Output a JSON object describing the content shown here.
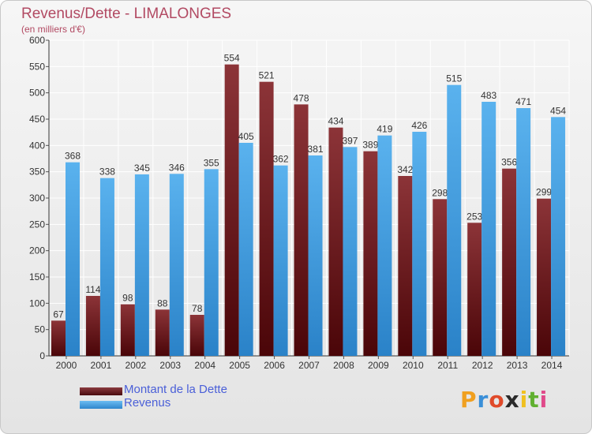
{
  "header": {
    "title": "Revenus/Dette - LIMALONGES",
    "subtitle": "(en milliers d'€)"
  },
  "chart_data": {
    "type": "bar",
    "categories": [
      "2000",
      "2001",
      "2002",
      "2003",
      "2004",
      "2005",
      "2006",
      "2007",
      "2008",
      "2009",
      "2010",
      "2011",
      "2012",
      "2013",
      "2014"
    ],
    "series": [
      {
        "name": "Montant de la Dette",
        "values": [
          67,
          114,
          98,
          88,
          78,
          554,
          521,
          478,
          434,
          389,
          342,
          298,
          253,
          356,
          299
        ],
        "color": "#7a2a2e"
      },
      {
        "name": "Revenus",
        "values": [
          368,
          338,
          345,
          346,
          355,
          405,
          362,
          381,
          397,
          419,
          426,
          515,
          483,
          471,
          454
        ],
        "color": "#4ea6e6"
      }
    ],
    "value_labels": {
      "Montant de la Dette": [
        "67",
        "114",
        "98",
        "88",
        "78",
        "554",
        "521",
        "478",
        "434",
        "389",
        "342",
        "298",
        "253",
        "356",
        "299"
      ],
      "Revenus": [
        "368",
        "338",
        "345",
        "346",
        "355",
        "405",
        "362",
        "381",
        "397",
        "419",
        "426",
        "515",
        "483",
        "471",
        "454"
      ]
    },
    "yticks": [
      "0",
      "50",
      "100",
      "150",
      "200",
      "250",
      "300",
      "350",
      "400",
      "450",
      "500",
      "550",
      "600"
    ],
    "ylim": [
      0,
      600
    ],
    "grid": true,
    "legend_position": "bottom-left"
  },
  "legend": {
    "items": [
      {
        "label": "Montant de la Dette",
        "color": "#7a2a2e"
      },
      {
        "label": "Revenus",
        "color": "#4ea6e6"
      }
    ]
  },
  "logo": {
    "letters": [
      "P",
      "r",
      "o",
      "x",
      "i",
      "t",
      "i"
    ],
    "colors": [
      "#f0a020",
      "#3a8fd8",
      "#e04a2a",
      "#2a2a2a",
      "#f0c020",
      "#60b030",
      "#e04a8a"
    ]
  }
}
